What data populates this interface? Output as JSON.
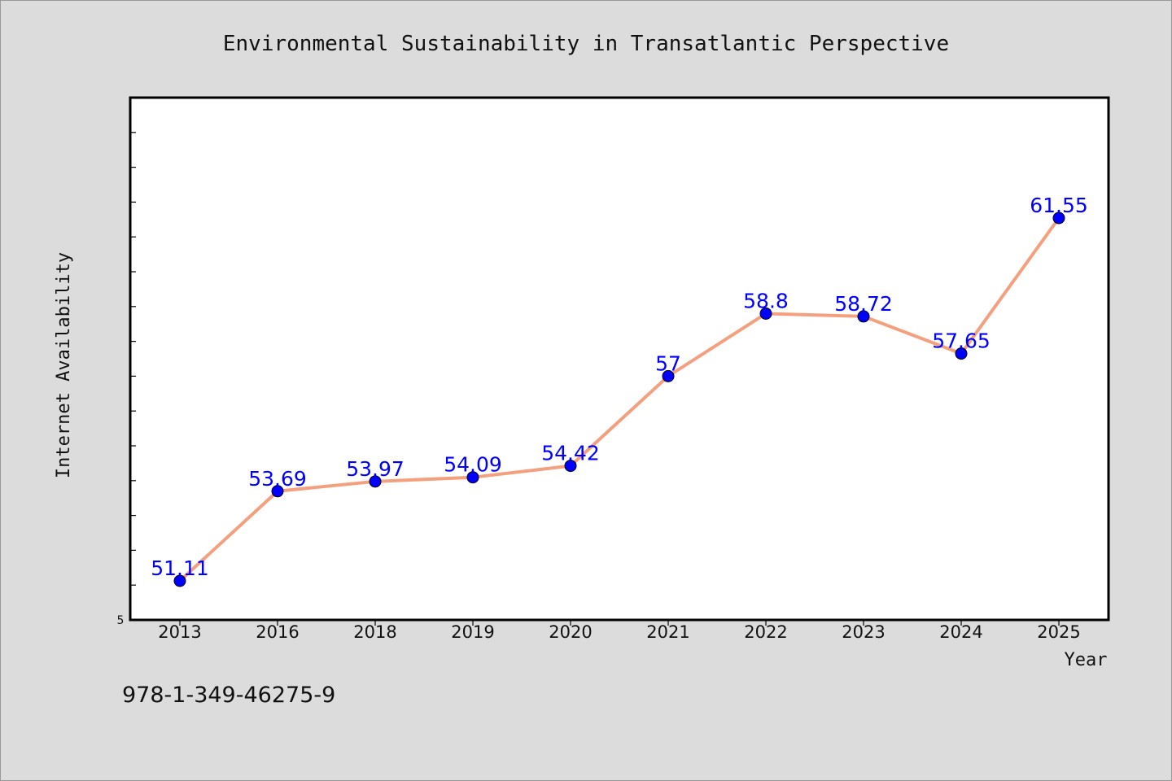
{
  "chart_data": {
    "type": "line",
    "title": "Environmental Sustainability in Transatlantic Perspective",
    "xlabel": "Year",
    "ylabel": "Internet Availability",
    "categories": [
      "2013",
      "2016",
      "2018",
      "2019",
      "2020",
      "2021",
      "2022",
      "2023",
      "2024",
      "2025"
    ],
    "series": [
      {
        "values": [
          51.11,
          53.69,
          53.97,
          54.09,
          54.42,
          57,
          58.8,
          58.72,
          57.65,
          61.55
        ],
        "data_labels": [
          "51.11",
          "53.69",
          "53.97",
          "54.09",
          "54.42",
          "57",
          "58.8",
          "58.72",
          "57.65",
          "61.55"
        ]
      }
    ],
    "ylim": [
      50,
      65
    ],
    "y_tick_labels_visible": [
      "5"
    ],
    "grid": false,
    "legend": "none",
    "colors": {
      "line": "#f4a07e",
      "marker": "#0000ff",
      "data_label": "#0000ff",
      "plot_background": "#ffffff",
      "page_background": "#dcdcdc"
    }
  },
  "footer": {
    "isbn": "978-1-349-46275-9"
  }
}
